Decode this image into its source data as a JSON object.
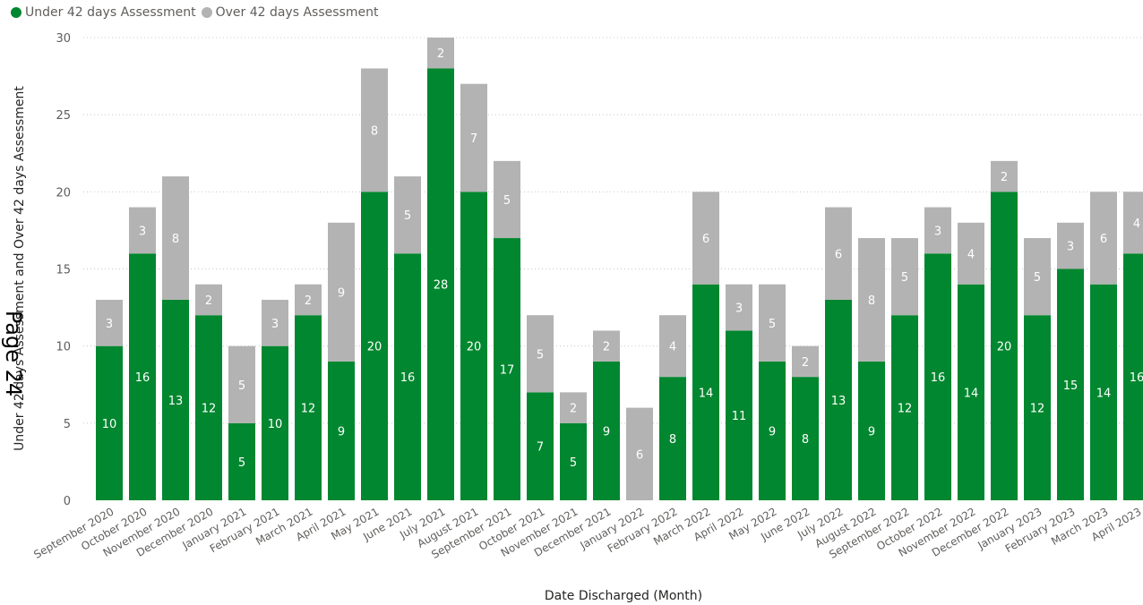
{
  "legend": {
    "items": [
      {
        "label": "Under 42 days Assessment",
        "color": "#00872f"
      },
      {
        "label": "Over 42 days Assessment",
        "color": "#b3b3b3"
      }
    ]
  },
  "watermark": "Page 24",
  "chart_data": {
    "type": "bar",
    "stacked": true,
    "xlabel": "Date Discharged (Month)",
    "ylabel": "Under 42 days Assessment and Over 42 days Assessment",
    "ylim": [
      0,
      30
    ],
    "yticks": [
      0,
      5,
      10,
      15,
      20,
      25,
      30
    ],
    "grid": true,
    "legend_position": "top-left",
    "categories": [
      "September 2020",
      "October 2020",
      "November 2020",
      "December 2020",
      "January 2021",
      "February 2021",
      "March 2021",
      "April 2021",
      "May 2021",
      "June 2021",
      "July 2021",
      "August 2021",
      "September 2021",
      "October 2021",
      "November 2021",
      "December 2021",
      "January 2022",
      "February 2022",
      "March 2022",
      "April 2022",
      "May 2022",
      "June 2022",
      "July 2022",
      "August 2022",
      "September 2022",
      "October 2022",
      "November 2022",
      "December 2022",
      "January 2023",
      "February 2023",
      "March 2023",
      "April 2023"
    ],
    "series": [
      {
        "name": "Under 42 days Assessment",
        "color": "#00872f",
        "values": [
          10,
          16,
          13,
          12,
          5,
          10,
          12,
          9,
          20,
          16,
          28,
          20,
          17,
          7,
          5,
          9,
          0,
          8,
          14,
          11,
          9,
          8,
          13,
          9,
          12,
          16,
          14,
          20,
          12,
          15,
          14,
          16
        ]
      },
      {
        "name": "Over 42 days Assessment",
        "color": "#b3b3b3",
        "values": [
          3,
          3,
          8,
          2,
          5,
          3,
          2,
          9,
          8,
          5,
          2,
          7,
          5,
          5,
          2,
          2,
          6,
          4,
          6,
          3,
          5,
          2,
          6,
          8,
          5,
          3,
          4,
          2,
          5,
          3,
          6,
          4
        ]
      }
    ]
  }
}
